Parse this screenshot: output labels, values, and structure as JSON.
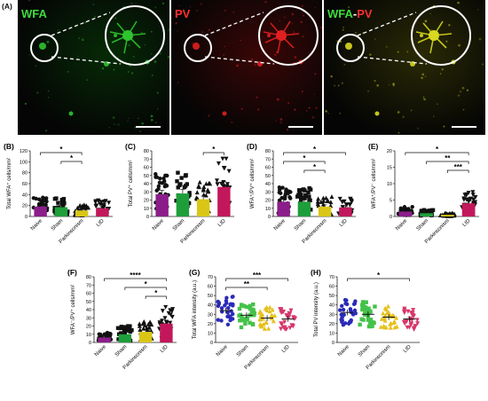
{
  "figure_label": "(A)",
  "micrographs": [
    {
      "channel": "WFA",
      "color": "#2ec42e",
      "label_parts": [
        {
          "text": "WFA",
          "color": "#3ddc3d"
        }
      ]
    },
    {
      "channel": "PV",
      "color": "#e02020",
      "label_parts": [
        {
          "text": "PV",
          "color": "#ff3030"
        }
      ]
    },
    {
      "channel": "merge",
      "color": "#d8d820",
      "label_parts": [
        {
          "text": "WFA",
          "color": "#3ddc3d"
        },
        {
          "text": "-",
          "color": "#ffffff"
        },
        {
          "text": "PV",
          "color": "#ff3030"
        }
      ]
    }
  ],
  "chart_data": [
    {
      "id": "B",
      "panel_label": "(B)",
      "type": "bar",
      "ylabel": "Total WFA⁺ cells/mm²",
      "categories": [
        "Naive",
        "Sham",
        "Parkinsonism",
        "LID"
      ],
      "values": [
        18,
        17,
        11,
        15
      ],
      "colors": [
        "#8b1d8b",
        "#1e9e3a",
        "#d9c616",
        "#c2185b"
      ],
      "ylim": [
        0,
        120
      ],
      "yticks": [
        0,
        20,
        40,
        60,
        80,
        100,
        120
      ],
      "brackets": [
        {
          "from": 0,
          "to": 2,
          "label": "*"
        },
        {
          "from": 1,
          "to": 2,
          "label": "*"
        }
      ]
    },
    {
      "id": "C",
      "panel_label": "(C)",
      "type": "bar",
      "ylabel": "Total PV⁺ cells/mm²",
      "categories": [
        "Naive",
        "Sham",
        "Parkinsonism",
        "LID"
      ],
      "values": [
        27,
        28,
        21,
        36
      ],
      "colors": [
        "#8b1d8b",
        "#1e9e3a",
        "#d9c616",
        "#c2185b"
      ],
      "ylim": [
        0,
        80
      ],
      "yticks": [
        0,
        10,
        20,
        30,
        40,
        50,
        60,
        70,
        80
      ],
      "brackets": [
        {
          "from": 2,
          "to": 3,
          "label": "*"
        }
      ]
    },
    {
      "id": "D",
      "panel_label": "(D)",
      "type": "bar",
      "ylabel": "WFA⁺/PV⁺ cells/mm²",
      "categories": [
        "Naive",
        "Sham",
        "Parkinsonism",
        "LID"
      ],
      "values": [
        18,
        18,
        12,
        11
      ],
      "colors": [
        "#8b1d8b",
        "#1e9e3a",
        "#d9c616",
        "#c2185b"
      ],
      "ylim": [
        0,
        80
      ],
      "yticks": [
        0,
        10,
        20,
        30,
        40,
        50,
        60,
        70,
        80
      ],
      "brackets": [
        {
          "from": 0,
          "to": 3,
          "label": "*"
        },
        {
          "from": 0,
          "to": 2,
          "label": "*"
        },
        {
          "from": 1,
          "to": 2,
          "label": "*"
        }
      ]
    },
    {
      "id": "E",
      "panel_label": "(E)",
      "type": "bar",
      "ylabel": "WFA⁺/PV⁻ cells/mm²",
      "categories": [
        "Naive",
        "Sham",
        "Parkinsonism",
        "LID"
      ],
      "values": [
        1.5,
        1,
        0.5,
        4
      ],
      "colors": [
        "#8b1d8b",
        "#1e9e3a",
        "#d9c616",
        "#c2185b"
      ],
      "ylim": [
        0,
        20
      ],
      "yticks": [
        0,
        5,
        10,
        15,
        20
      ],
      "brackets": [
        {
          "from": 0,
          "to": 3,
          "label": "*"
        },
        {
          "from": 1,
          "to": 3,
          "label": "**"
        },
        {
          "from": 2,
          "to": 3,
          "label": "***"
        }
      ]
    },
    {
      "id": "F",
      "panel_label": "(F)",
      "type": "bar",
      "ylabel": "WFA⁻/PV⁺ cells/mm²",
      "categories": [
        "Naive",
        "Sham",
        "Parkinsonism",
        "LID"
      ],
      "values": [
        6,
        10,
        13,
        23
      ],
      "colors": [
        "#8b1d8b",
        "#1e9e3a",
        "#d9c616",
        "#c2185b"
      ],
      "ylim": [
        0,
        80
      ],
      "yticks": [
        0,
        10,
        20,
        30,
        40,
        50,
        60,
        70,
        80
      ],
      "brackets": [
        {
          "from": 0,
          "to": 3,
          "label": "****"
        },
        {
          "from": 1,
          "to": 3,
          "label": "*"
        },
        {
          "from": 2,
          "to": 3,
          "label": "*"
        }
      ]
    },
    {
      "id": "G",
      "panel_label": "(G)",
      "type": "scatter",
      "ylabel": "Total WFA intensity (a.u.)",
      "categories": [
        "Naive",
        "Sham",
        "Parkinsonism",
        "LID"
      ],
      "means": [
        34,
        29,
        26,
        25
      ],
      "colors": [
        "#2a2ab8",
        "#44c24a",
        "#e6c01a",
        "#d8366a"
      ],
      "ylim": [
        0,
        70
      ],
      "yticks": [
        0,
        10,
        20,
        30,
        40,
        50,
        60,
        70
      ],
      "brackets": [
        {
          "from": 0,
          "to": 3,
          "label": "***"
        },
        {
          "from": 0,
          "to": 2,
          "label": "**"
        }
      ]
    },
    {
      "id": "H",
      "panel_label": "(H)",
      "type": "scatter",
      "ylabel": "Total PV intensity (a.u.)",
      "categories": [
        "Naive",
        "Sham",
        "Parkinsonism",
        "LID"
      ],
      "means": [
        32,
        30,
        27,
        25
      ],
      "colors": [
        "#2a2ab8",
        "#44c24a",
        "#e6c01a",
        "#d8366a"
      ],
      "ylim": [
        0,
        70
      ],
      "yticks": [
        0,
        10,
        20,
        30,
        40,
        50,
        60,
        70
      ],
      "brackets": [
        {
          "from": 0,
          "to": 3,
          "label": "*"
        }
      ]
    }
  ]
}
